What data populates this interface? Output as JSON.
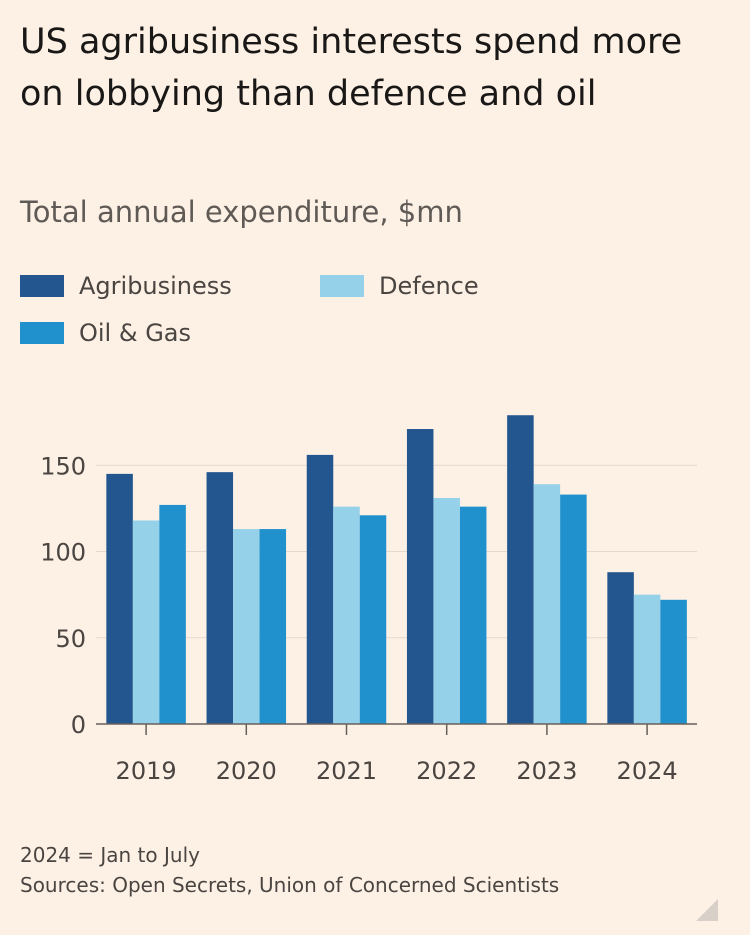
{
  "title": "US agribusiness interests spend more on lobbying than defence and oil",
  "subtitle": "Total annual expenditure, $mn",
  "legend": [
    {
      "label": "Agribusiness",
      "color": "#23558e"
    },
    {
      "label": "Defence",
      "color": "#96d1ea"
    },
    {
      "label": "Oil & Gas",
      "color": "#2091cc"
    }
  ],
  "footnote": "2024 = Jan to July",
  "source": "Sources: Open Secrets, Union of Concerned Scientists",
  "chart_data": {
    "type": "bar",
    "categories": [
      "2019",
      "2020",
      "2021",
      "2022",
      "2023",
      "2024"
    ],
    "series": [
      {
        "name": "Agribusiness",
        "color": "#23558e",
        "values": [
          145,
          146,
          156,
          171,
          179,
          88
        ]
      },
      {
        "name": "Defence",
        "color": "#96d1ea",
        "values": [
          118,
          113,
          126,
          131,
          139,
          75
        ]
      },
      {
        "name": "Oil & Gas",
        "color": "#2091cc",
        "values": [
          127,
          113,
          121,
          126,
          133,
          72
        ]
      }
    ],
    "yticks": [
      0,
      50,
      100,
      150
    ],
    "ylim": [
      0,
      185
    ],
    "grid": true,
    "legend_position": "top-left",
    "colors": {
      "background": "#fdf1e6",
      "grid": "#e2d9d0",
      "axis": "#66605a",
      "tick_text": "#4a4541"
    }
  }
}
